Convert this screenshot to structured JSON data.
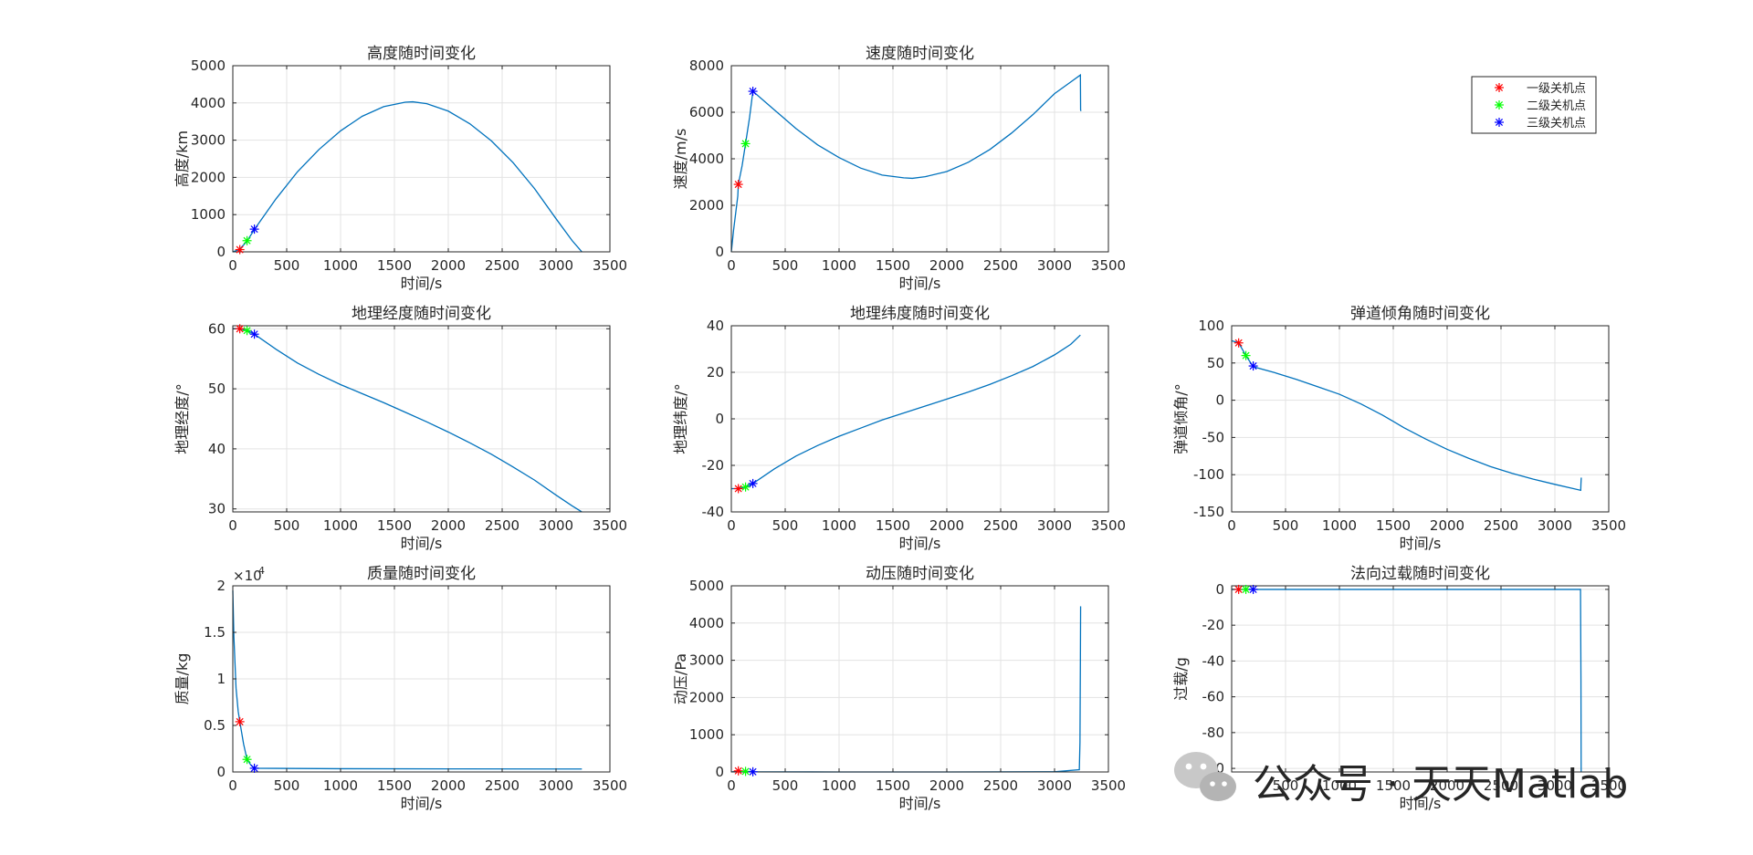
{
  "figure": {
    "legend": {
      "position": "top-right",
      "entries": [
        {
          "label": "一级关机点",
          "color": "#ff0000"
        },
        {
          "label": "二级关机点",
          "color": "#00ff00"
        },
        {
          "label": "三级关机点",
          "color": "#0000ff"
        }
      ]
    },
    "watermark": "公众号 · 天天Matlab"
  },
  "chart_data": [
    {
      "type": "line",
      "title": "高度随时间变化",
      "xlabel": "时间/s",
      "ylabel": "高度/km",
      "xlim": [
        0,
        3500
      ],
      "ylim": [
        0,
        5000
      ],
      "xticks": [
        0,
        500,
        1000,
        1500,
        2000,
        2500,
        3000,
        3500
      ],
      "yticks": [
        0,
        1000,
        2000,
        3000,
        4000,
        5000
      ],
      "grid": true,
      "series": [
        {
          "color": "#0072bd",
          "x": [
            0,
            60,
            130,
            200,
            400,
            600,
            800,
            1000,
            1200,
            1400,
            1600,
            1670,
            1800,
            2000,
            2200,
            2400,
            2600,
            2800,
            3000,
            3150,
            3240
          ],
          "y": [
            0,
            60,
            280,
            600,
            1420,
            2150,
            2750,
            3250,
            3640,
            3900,
            4020,
            4030,
            3980,
            3780,
            3440,
            2980,
            2400,
            1700,
            890,
            300,
            0
          ]
        }
      ],
      "markers": [
        {
          "x": 65,
          "y": 60,
          "color": "#ff0000"
        },
        {
          "x": 132,
          "y": 300,
          "color": "#00ff00"
        },
        {
          "x": 200,
          "y": 610,
          "color": "#0000ff"
        }
      ]
    },
    {
      "type": "line",
      "title": "速度随时间变化",
      "xlabel": "时间/s",
      "ylabel": "速度/m/s",
      "xlim": [
        0,
        3500
      ],
      "ylim": [
        0,
        8000
      ],
      "xticks": [
        0,
        500,
        1000,
        1500,
        2000,
        2500,
        3000,
        3500
      ],
      "yticks": [
        0,
        2000,
        4000,
        6000,
        8000
      ],
      "grid": true,
      "series": [
        {
          "color": "#0072bd",
          "x": [
            0,
            20,
            60,
            65,
            100,
            132,
            170,
            200,
            400,
            600,
            800,
            1000,
            1200,
            1400,
            1600,
            1680,
            1800,
            2000,
            2200,
            2400,
            2600,
            2800,
            3000,
            3150,
            3240,
            3242,
            3245
          ],
          "y": [
            0,
            900,
            2400,
            2900,
            3700,
            4650,
            5800,
            6900,
            6100,
            5300,
            4600,
            4050,
            3600,
            3300,
            3180,
            3160,
            3230,
            3450,
            3850,
            4400,
            5100,
            5900,
            6800,
            7300,
            7600,
            6100,
            6050
          ]
        }
      ],
      "markers": [
        {
          "x": 65,
          "y": 2900,
          "color": "#ff0000"
        },
        {
          "x": 132,
          "y": 4650,
          "color": "#00ff00"
        },
        {
          "x": 200,
          "y": 6900,
          "color": "#0000ff"
        }
      ]
    },
    {
      "type": "line",
      "title": "地理经度随时间变化",
      "xlabel": "时间/s",
      "ylabel": "地理经度/°",
      "xlim": [
        0,
        3500
      ],
      "ylim": [
        29.5,
        60.5
      ],
      "xticks": [
        0,
        500,
        1000,
        1500,
        2000,
        2500,
        3000,
        3500
      ],
      "yticks": [
        30,
        40,
        50,
        60
      ],
      "grid": true,
      "series": [
        {
          "color": "#0072bd",
          "x": [
            0,
            65,
            132,
            200,
            400,
            600,
            800,
            1000,
            1200,
            1400,
            1600,
            1800,
            2000,
            2200,
            2400,
            2600,
            2800,
            3000,
            3150,
            3240
          ],
          "y": [
            60,
            60,
            59.7,
            59.1,
            56.6,
            54.3,
            52.4,
            50.7,
            49.2,
            47.7,
            46.1,
            44.5,
            42.8,
            41.0,
            39.1,
            37.0,
            34.8,
            32.3,
            30.5,
            29.5
          ]
        }
      ],
      "markers": [
        {
          "x": 65,
          "y": 60,
          "color": "#ff0000"
        },
        {
          "x": 132,
          "y": 59.7,
          "color": "#00ff00"
        },
        {
          "x": 200,
          "y": 59.1,
          "color": "#0000ff"
        }
      ]
    },
    {
      "type": "line",
      "title": "地理纬度随时间变化",
      "xlabel": "时间/s",
      "ylabel": "地理纬度/°",
      "xlim": [
        0,
        3500
      ],
      "ylim": [
        -40,
        40
      ],
      "xticks": [
        0,
        500,
        1000,
        1500,
        2000,
        2500,
        3000,
        3500
      ],
      "yticks": [
        -40,
        -20,
        0,
        20,
        40
      ],
      "grid": true,
      "series": [
        {
          "color": "#0072bd",
          "x": [
            0,
            65,
            132,
            200,
            400,
            600,
            800,
            1000,
            1200,
            1400,
            1600,
            1800,
            2000,
            2200,
            2400,
            2600,
            2800,
            3000,
            3150,
            3240
          ],
          "y": [
            -30,
            -30,
            -29.3,
            -27.8,
            -21.5,
            -16.0,
            -11.5,
            -7.5,
            -4.0,
            -0.5,
            2.5,
            5.5,
            8.5,
            11.5,
            14.8,
            18.5,
            22.5,
            27.5,
            32.0,
            36.0
          ]
        }
      ],
      "markers": [
        {
          "x": 65,
          "y": -30,
          "color": "#ff0000"
        },
        {
          "x": 132,
          "y": -29.3,
          "color": "#00ff00"
        },
        {
          "x": 200,
          "y": -27.8,
          "color": "#0000ff"
        }
      ]
    },
    {
      "type": "line",
      "title": "弹道倾角随时间变化",
      "xlabel": "时间/s",
      "ylabel": "弹道倾角/°",
      "xlim": [
        0,
        3500
      ],
      "ylim": [
        -150,
        100
      ],
      "xticks": [
        0,
        500,
        1000,
        1500,
        2000,
        2500,
        3000,
        3500
      ],
      "yticks": [
        -150,
        -100,
        -50,
        0,
        50,
        100
      ],
      "grid": true,
      "series": [
        {
          "color": "#0072bd",
          "x": [
            0,
            65,
            132,
            200,
            400,
            600,
            800,
            1000,
            1200,
            1400,
            1600,
            1800,
            2000,
            2200,
            2400,
            2600,
            2800,
            3000,
            3150,
            3240,
            3242,
            3245
          ],
          "y": [
            80,
            77,
            60,
            45,
            37,
            28,
            18,
            8,
            -5,
            -20,
            -37,
            -52,
            -66,
            -78,
            -89,
            -98,
            -106,
            -113,
            -118,
            -121,
            -112,
            -104
          ]
        }
      ],
      "markers": [
        {
          "x": 65,
          "y": 77,
          "color": "#ff0000"
        },
        {
          "x": 132,
          "y": 60,
          "color": "#00ff00"
        },
        {
          "x": 200,
          "y": 46,
          "color": "#0000ff"
        }
      ]
    },
    {
      "type": "line",
      "title": "质量随时间变化",
      "xlabel": "时间/s",
      "ylabel": "质量/kg",
      "xlim": [
        0,
        3500
      ],
      "ylim": [
        0,
        20000
      ],
      "xticks": [
        0,
        500,
        1000,
        1500,
        2000,
        2500,
        3000,
        3500
      ],
      "yticks": [
        0,
        5000,
        10000,
        15000,
        20000
      ],
      "ytick_labels": [
        "0",
        "0.5",
        "1",
        "1.5",
        "2"
      ],
      "yexponent": "×10",
      "yexponent_power": "4",
      "grid": true,
      "series": [
        {
          "color": "#0072bd",
          "x": [
            0,
            10,
            30,
            50,
            65,
            100,
            132,
            170,
            200,
            1000,
            2000,
            3000,
            3240
          ],
          "y": [
            19500,
            14500,
            9000,
            6500,
            5400,
            3000,
            1350,
            700,
            400,
            350,
            330,
            320,
            320
          ]
        }
      ],
      "markers": [
        {
          "x": 65,
          "y": 5400,
          "color": "#ff0000"
        },
        {
          "x": 132,
          "y": 1350,
          "color": "#00ff00"
        },
        {
          "x": 200,
          "y": 400,
          "color": "#0000ff"
        }
      ]
    },
    {
      "type": "line",
      "title": "动压随时间变化",
      "xlabel": "时间/s",
      "ylabel": "动压/Pa",
      "xlim": [
        0,
        3500
      ],
      "ylim": [
        0,
        5000
      ],
      "xticks": [
        0,
        500,
        1000,
        1500,
        2000,
        2500,
        3000,
        3500
      ],
      "yticks": [
        0,
        1000,
        2000,
        3000,
        4000,
        5000
      ],
      "grid": true,
      "series": [
        {
          "color": "#0072bd",
          "x": [
            0,
            65,
            132,
            200,
            1000,
            2000,
            3000,
            3230,
            3236,
            3240,
            3242
          ],
          "y": [
            0,
            30,
            15,
            5,
            0,
            0,
            5,
            60,
            800,
            3000,
            4450
          ]
        }
      ],
      "markers": [
        {
          "x": 65,
          "y": 30,
          "color": "#ff0000"
        },
        {
          "x": 132,
          "y": 15,
          "color": "#00ff00"
        },
        {
          "x": 200,
          "y": 5,
          "color": "#0000ff"
        }
      ]
    },
    {
      "type": "line",
      "title": "法向过载随时间变化",
      "xlabel": "时间/s",
      "ylabel": "过载/g",
      "xlim": [
        0,
        3500
      ],
      "ylim": [
        -102,
        2
      ],
      "xticks": [
        0,
        500,
        1000,
        1500,
        2000,
        2500,
        3000,
        3500
      ],
      "yticks": [
        -100,
        -80,
        -60,
        -40,
        -20,
        0
      ],
      "grid": true,
      "series": [
        {
          "color": "#0072bd",
          "x": [
            0,
            65,
            132,
            200,
            1000,
            2000,
            3000,
            3238,
            3242,
            3244
          ],
          "y": [
            0,
            0,
            0,
            0,
            0,
            0,
            0,
            0,
            -50,
            -102
          ]
        }
      ],
      "markers": [
        {
          "x": 65,
          "y": 0,
          "color": "#ff0000"
        },
        {
          "x": 132,
          "y": 0,
          "color": "#00ff00"
        },
        {
          "x": 200,
          "y": 0,
          "color": "#0000ff"
        }
      ]
    }
  ]
}
